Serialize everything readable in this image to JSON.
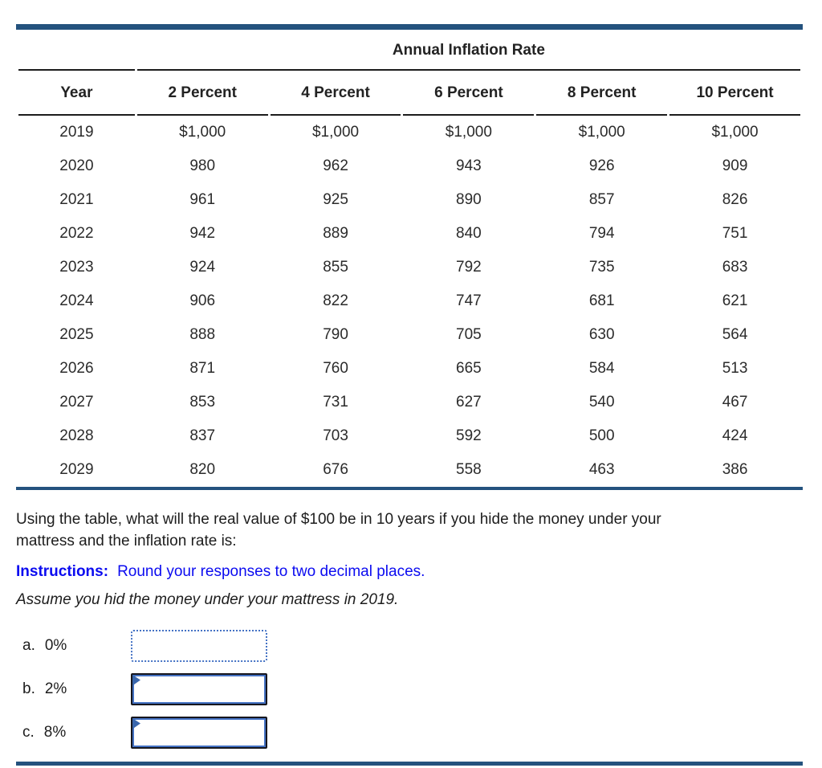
{
  "colors": {
    "navy_rule": "#24527E",
    "input_accent_blue": "#4472C4",
    "marker_blue": "#3A67AD",
    "instructions_blue": "#0B0BF0",
    "table_line_black": "#1C1C1C"
  },
  "table": {
    "group_header": "Annual Inflation Rate",
    "columns": [
      "Year",
      "2 Percent",
      "4 Percent",
      "6 Percent",
      "8 Percent",
      "10 Percent"
    ],
    "rows": [
      [
        "2019",
        "$1,000",
        "$1,000",
        "$1,000",
        "$1,000",
        "$1,000"
      ],
      [
        "2020",
        "980",
        "962",
        "943",
        "926",
        "909"
      ],
      [
        "2021",
        "961",
        "925",
        "890",
        "857",
        "826"
      ],
      [
        "2022",
        "942",
        "889",
        "840",
        "794",
        "751"
      ],
      [
        "2023",
        "924",
        "855",
        "792",
        "735",
        "683"
      ],
      [
        "2024",
        "906",
        "822",
        "747",
        "681",
        "621"
      ],
      [
        "2025",
        "888",
        "790",
        "705",
        "630",
        "564"
      ],
      [
        "2026",
        "871",
        "760",
        "665",
        "584",
        "513"
      ],
      [
        "2027",
        "853",
        "731",
        "627",
        "540",
        "467"
      ],
      [
        "2028",
        "837",
        "703",
        "592",
        "500",
        "424"
      ],
      [
        "2029",
        "820",
        "676",
        "558",
        "463",
        "386"
      ]
    ]
  },
  "question": {
    "line1": "Using the table, what will the real value of $100 be in 10 years if you hide the money under your",
    "line2": "mattress and the inflation rate is:",
    "instructions_label": "Instructions:",
    "instructions_text": "Round your responses to two decimal places.",
    "assumption": "Assume you hid the money under your mattress in 2019."
  },
  "answers": [
    {
      "letter": "a.",
      "rate": "0%",
      "value": ""
    },
    {
      "letter": "b.",
      "rate": "2%",
      "value": ""
    },
    {
      "letter": "c.",
      "rate": "8%",
      "value": ""
    }
  ]
}
